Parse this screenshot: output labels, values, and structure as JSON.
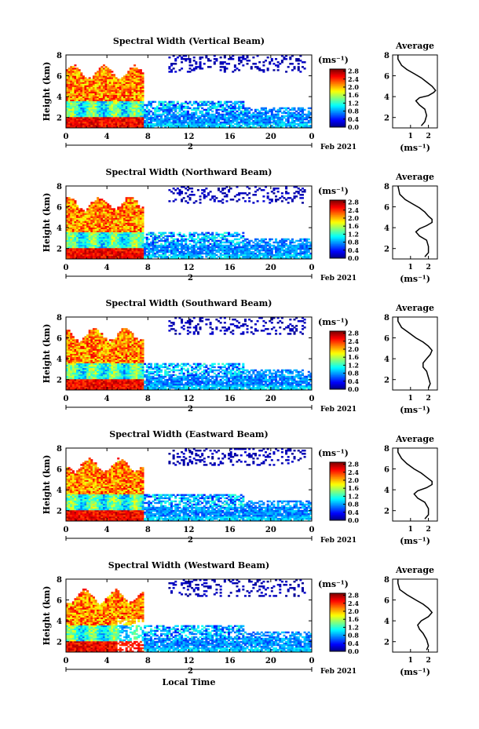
{
  "figure": {
    "colorbar_unit": "(ms⁻¹)",
    "avg_unit": "(ms⁻¹)",
    "avg_title": "Average",
    "ylabel": "Height (km)",
    "xlabel": "Local Time",
    "date_label": "Feb 2021",
    "day_label": "2"
  },
  "chart_data": [
    {
      "type": "heatmap",
      "title": "Spectral Width (Vertical Beam)",
      "ylabel": "Height (km)",
      "x_ticks": [
        "0",
        "4",
        "8",
        "12",
        "16",
        "20",
        "0"
      ],
      "y_ticks": [
        "2",
        "4",
        "6",
        "8"
      ],
      "xlim": [
        0,
        24
      ],
      "ylim": [
        1,
        8
      ],
      "colorbar": {
        "label": "(ms⁻¹)",
        "ticks": [
          "0.0",
          "0.4",
          "0.8",
          "1.2",
          "1.6",
          "2.0",
          "2.4",
          "2.8"
        ],
        "range": [
          0,
          2.9
        ]
      },
      "average_profile": {
        "title": "Average",
        "xlabel": "(ms⁻¹)",
        "x_ticks": [
          "1",
          "2"
        ],
        "y_ticks": [
          "2",
          "4",
          "6",
          "8"
        ],
        "points": [
          [
            1.6,
            1.2
          ],
          [
            1.8,
            1.6
          ],
          [
            1.9,
            2.2
          ],
          [
            1.8,
            2.8
          ],
          [
            1.5,
            3.2
          ],
          [
            1.3,
            3.6
          ],
          [
            1.5,
            3.9
          ],
          [
            2.0,
            4.1
          ],
          [
            2.3,
            4.4
          ],
          [
            2.4,
            4.6
          ],
          [
            2.2,
            5.0
          ],
          [
            1.9,
            5.4
          ],
          [
            1.6,
            5.8
          ],
          [
            1.2,
            6.2
          ],
          [
            0.8,
            6.6
          ],
          [
            0.5,
            7.0
          ],
          [
            0.3,
            7.6
          ],
          [
            0.3,
            8.0
          ]
        ]
      }
    },
    {
      "type": "heatmap",
      "title": "Spectral Width (Northward Beam)",
      "ylabel": "Height (km)",
      "x_ticks": [
        "0",
        "4",
        "8",
        "12",
        "16",
        "20",
        "0"
      ],
      "y_ticks": [
        "2",
        "4",
        "6",
        "8"
      ],
      "xlim": [
        0,
        24
      ],
      "ylim": [
        1,
        8
      ],
      "colorbar": {
        "label": "(ms⁻¹)",
        "ticks": [
          "0.0",
          "0.4",
          "0.8",
          "1.2",
          "1.6",
          "2.0",
          "2.4",
          "2.8"
        ],
        "range": [
          0,
          2.9
        ]
      },
      "average_profile": {
        "title": "Average",
        "xlabel": "(ms⁻¹)",
        "x_ticks": [
          "1",
          "2"
        ],
        "y_ticks": [
          "2",
          "4",
          "6",
          "8"
        ],
        "points": [
          [
            1.8,
            1.2
          ],
          [
            2.0,
            1.6
          ],
          [
            2.0,
            2.2
          ],
          [
            1.9,
            2.8
          ],
          [
            1.5,
            3.2
          ],
          [
            1.3,
            3.6
          ],
          [
            1.5,
            3.9
          ],
          [
            1.9,
            4.2
          ],
          [
            2.2,
            4.5
          ],
          [
            2.2,
            4.8
          ],
          [
            2.0,
            5.1
          ],
          [
            1.8,
            5.5
          ],
          [
            1.5,
            5.9
          ],
          [
            1.1,
            6.3
          ],
          [
            0.7,
            6.7
          ],
          [
            0.4,
            7.2
          ],
          [
            0.3,
            8.0
          ]
        ]
      }
    },
    {
      "type": "heatmap",
      "title": "Spectral Width (Southward Beam)",
      "ylabel": "Height (km)",
      "x_ticks": [
        "0",
        "4",
        "8",
        "12",
        "16",
        "20",
        "0"
      ],
      "y_ticks": [
        "2",
        "4",
        "6",
        "8"
      ],
      "xlim": [
        0,
        24
      ],
      "ylim": [
        1,
        8
      ],
      "colorbar": {
        "label": "(ms⁻¹)",
        "ticks": [
          "0.0",
          "0.4",
          "0.8",
          "1.2",
          "1.6",
          "2.0",
          "2.4",
          "2.8"
        ],
        "range": [
          0,
          2.9
        ]
      },
      "average_profile": {
        "title": "Average",
        "xlabel": "(ms⁻¹)",
        "x_ticks": [
          "1",
          "2"
        ],
        "y_ticks": [
          "2",
          "4",
          "6",
          "8"
        ],
        "points": [
          [
            2.0,
            1.2
          ],
          [
            2.1,
            1.6
          ],
          [
            2.0,
            2.2
          ],
          [
            1.9,
            2.8
          ],
          [
            1.7,
            3.2
          ],
          [
            1.7,
            3.6
          ],
          [
            1.9,
            4.0
          ],
          [
            2.1,
            4.4
          ],
          [
            2.2,
            4.8
          ],
          [
            2.0,
            5.2
          ],
          [
            1.7,
            5.6
          ],
          [
            1.3,
            6.0
          ],
          [
            0.9,
            6.5
          ],
          [
            0.5,
            7.0
          ],
          [
            0.3,
            7.6
          ],
          [
            0.3,
            8.0
          ]
        ]
      }
    },
    {
      "type": "heatmap",
      "title": "Spectral Width (Eastward Beam)",
      "ylabel": "Height (km)",
      "x_ticks": [
        "0",
        "4",
        "8",
        "12",
        "16",
        "20",
        "0"
      ],
      "y_ticks": [
        "2",
        "4",
        "6",
        "8"
      ],
      "xlim": [
        0,
        24
      ],
      "ylim": [
        1,
        8
      ],
      "colorbar": {
        "label": "(ms⁻¹)",
        "ticks": [
          "0.0",
          "0.4",
          "0.8",
          "1.2",
          "1.6",
          "2.0",
          "2.4",
          "2.8"
        ],
        "range": [
          0,
          2.9
        ]
      },
      "average_profile": {
        "title": "Average",
        "xlabel": "(ms⁻¹)",
        "x_ticks": [
          "1",
          "2"
        ],
        "y_ticks": [
          "2",
          "4",
          "6",
          "8"
        ],
        "points": [
          [
            1.8,
            1.2
          ],
          [
            2.0,
            1.6
          ],
          [
            2.0,
            2.2
          ],
          [
            1.8,
            2.8
          ],
          [
            1.4,
            3.2
          ],
          [
            1.2,
            3.6
          ],
          [
            1.4,
            3.9
          ],
          [
            1.9,
            4.2
          ],
          [
            2.2,
            4.5
          ],
          [
            2.2,
            4.8
          ],
          [
            1.9,
            5.2
          ],
          [
            1.6,
            5.6
          ],
          [
            1.2,
            6.0
          ],
          [
            0.8,
            6.5
          ],
          [
            0.5,
            7.0
          ],
          [
            0.3,
            7.6
          ],
          [
            0.3,
            8.0
          ]
        ]
      }
    },
    {
      "type": "heatmap",
      "title": "Spectral Width (Westward Beam)",
      "ylabel": "Height (km)",
      "xlabel": "Local Time",
      "x_ticks": [
        "0",
        "4",
        "8",
        "12",
        "16",
        "20",
        "0"
      ],
      "y_ticks": [
        "2",
        "4",
        "6",
        "8"
      ],
      "xlim": [
        0,
        24
      ],
      "ylim": [
        1,
        8
      ],
      "colorbar": {
        "label": "(ms⁻¹)",
        "ticks": [
          "0.0",
          "0.4",
          "0.8",
          "1.2",
          "1.6",
          "2.0",
          "2.4",
          "2.8"
        ],
        "range": [
          0,
          2.9
        ]
      },
      "average_profile": {
        "title": "Average",
        "xlabel": "(ms⁻¹)",
        "x_ticks": [
          "1",
          "2"
        ],
        "y_ticks": [
          "2",
          "4",
          "6",
          "8"
        ],
        "points": [
          [
            1.9,
            1.2
          ],
          [
            2.0,
            1.6
          ],
          [
            1.9,
            2.2
          ],
          [
            1.7,
            2.8
          ],
          [
            1.5,
            3.2
          ],
          [
            1.4,
            3.6
          ],
          [
            1.6,
            4.0
          ],
          [
            2.0,
            4.4
          ],
          [
            2.2,
            4.8
          ],
          [
            2.0,
            5.2
          ],
          [
            1.7,
            5.6
          ],
          [
            1.3,
            6.0
          ],
          [
            0.8,
            6.5
          ],
          [
            0.4,
            7.0
          ],
          [
            0.3,
            7.6
          ],
          [
            0.3,
            8.0
          ]
        ]
      }
    }
  ]
}
